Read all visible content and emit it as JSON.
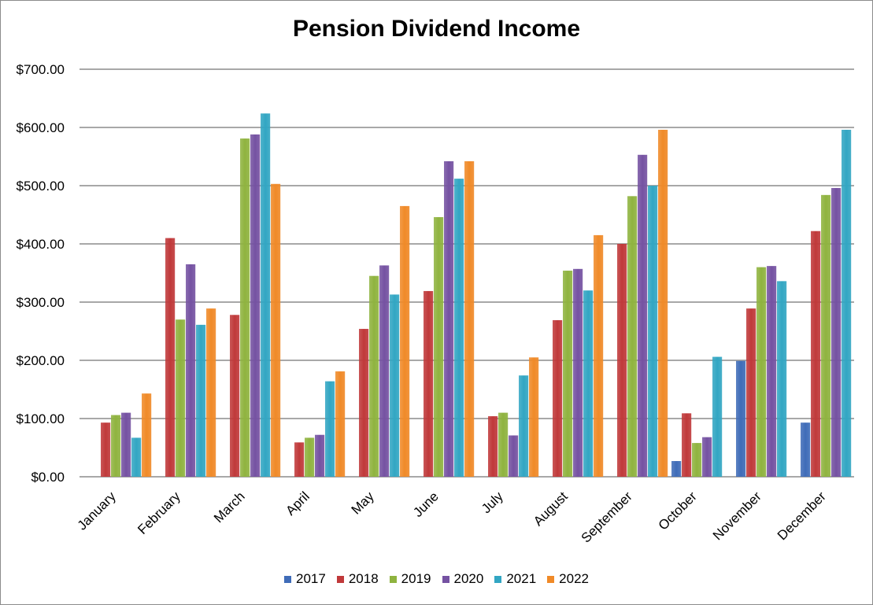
{
  "chart_data": {
    "type": "bar",
    "title": "Pension Dividend Income",
    "xlabel": "",
    "ylabel": "",
    "ylim": [
      0,
      700
    ],
    "yticks": [
      "$0.00",
      "$100.00",
      "$200.00",
      "$300.00",
      "$400.00",
      "$500.00",
      "$600.00",
      "$700.00"
    ],
    "grid": true,
    "legend_position": "bottom",
    "categories": [
      "January",
      "February",
      "March",
      "April",
      "May",
      "June",
      "July",
      "August",
      "September",
      "October",
      "November",
      "December"
    ],
    "series": [
      {
        "name": "2017",
        "color": "#3f6cb8",
        "values": [
          0,
          0,
          0,
          0,
          0,
          0,
          0,
          0,
          0,
          27,
          199,
          93
        ]
      },
      {
        "name": "2018",
        "color": "#c0393a",
        "values": [
          93,
          410,
          278,
          59,
          254,
          319,
          104,
          269,
          400,
          109,
          289,
          422
        ]
      },
      {
        "name": "2019",
        "color": "#8fb33f",
        "values": [
          106,
          270,
          581,
          67,
          345,
          446,
          110,
          354,
          482,
          58,
          360,
          484
        ]
      },
      {
        "name": "2020",
        "color": "#7552a2",
        "values": [
          110,
          365,
          588,
          72,
          363,
          542,
          71,
          357,
          553,
          68,
          362,
          496
        ]
      },
      {
        "name": "2021",
        "color": "#32a6c3",
        "values": [
          67,
          261,
          624,
          164,
          313,
          512,
          174,
          320,
          500,
          206,
          336,
          596
        ]
      },
      {
        "name": "2022",
        "color": "#f08a28",
        "values": [
          143,
          289,
          503,
          181,
          465,
          542,
          205,
          415,
          596,
          0,
          0,
          0
        ]
      }
    ]
  }
}
